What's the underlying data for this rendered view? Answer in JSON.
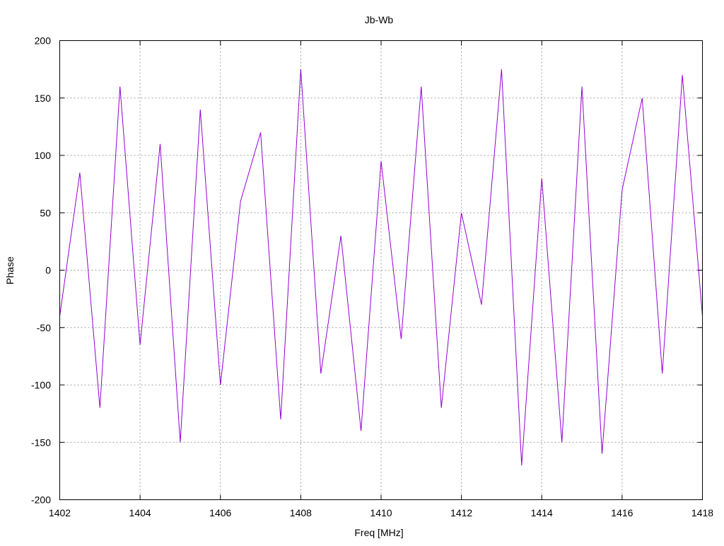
{
  "chart_data": {
    "type": "line",
    "title": "Jb-Wb",
    "xlabel": "Freq [MHz]",
    "ylabel": "Phase",
    "xlim": [
      1402,
      1418
    ],
    "ylim": [
      -200,
      200
    ],
    "xticks": [
      1402,
      1404,
      1406,
      1408,
      1410,
      1412,
      1414,
      1416,
      1418
    ],
    "yticks": [
      -200,
      -150,
      -100,
      -50,
      0,
      50,
      100,
      150,
      200
    ],
    "grid": true,
    "line_color": "#9400d3",
    "series": [
      {
        "x": [
          1402.0,
          1402.5,
          1403.0,
          1403.5,
          1404.0,
          1404.5,
          1405.0,
          1405.5,
          1406.0,
          1406.5,
          1407.0,
          1407.5,
          1408.0,
          1408.5,
          1409.0,
          1409.5,
          1410.0,
          1410.5,
          1411.0,
          1411.5,
          1412.0,
          1412.5,
          1413.0,
          1413.5,
          1414.0,
          1414.5,
          1415.0,
          1415.5,
          1416.0,
          1416.5,
          1417.0,
          1417.5,
          1418.0
        ],
        "values": [
          -40,
          85,
          -120,
          160,
          -65,
          110,
          -150,
          140,
          -100,
          60,
          120,
          -130,
          175,
          -90,
          30,
          -140,
          95,
          -60,
          160,
          -120,
          50,
          -30,
          175,
          -170,
          80,
          -150,
          160,
          -160,
          70,
          150,
          -90,
          170,
          -40
        ]
      }
    ]
  }
}
